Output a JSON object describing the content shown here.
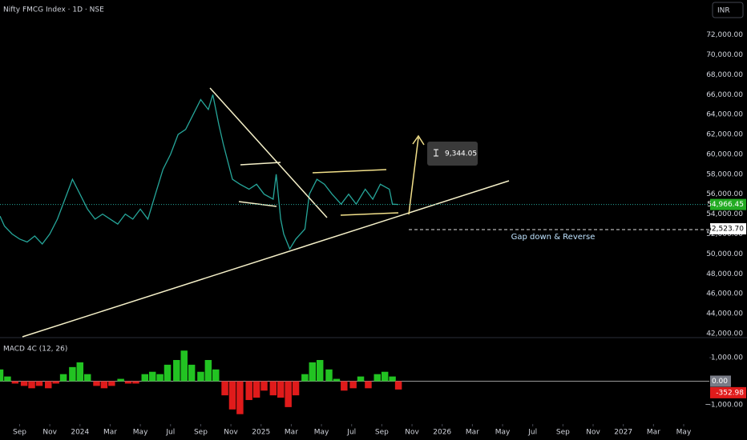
{
  "chart_data": [
    {
      "type": "line",
      "title": "Nifty FMCG Index · 1D · NSE",
      "currency": "INR",
      "x": [
        -5.3,
        -5,
        -4.5,
        -4,
        -3.5,
        -3,
        -2.5,
        -2,
        -1.5,
        -1,
        -0.5,
        0,
        0.5,
        1,
        1.5,
        2,
        2.5,
        3,
        3.5,
        4,
        4.5,
        5,
        5.5,
        6,
        6.5,
        7,
        7.5,
        8,
        8.5,
        8.8,
        9.2,
        9.5,
        10.1,
        10.6,
        11.2,
        11.7,
        12.2,
        12.8,
        13.0,
        13.3,
        13.5,
        13.9,
        14.3,
        14.9,
        15.2,
        15.7,
        16.2,
        16.7,
        17.3,
        17.8,
        18.3,
        18.9,
        19.4,
        19.9,
        20.5,
        20.7,
        21.1
      ],
      "series": [
        {
          "color": "#26a69a",
          "values": [
            53800,
            52800,
            52000,
            51500,
            51200,
            51800,
            51000,
            52000,
            53500,
            55500,
            57500,
            56000,
            54500,
            53500,
            54000,
            53500,
            53000,
            54000,
            53500,
            54500,
            53500,
            56000,
            58500,
            60000,
            62000,
            62500,
            64000,
            65500,
            64500,
            66000,
            63000,
            61000,
            57500,
            57000,
            56500,
            57000,
            56000,
            55500,
            58000,
            53500,
            52000,
            50500,
            51500,
            52500,
            56000,
            57500,
            57000,
            56000,
            55000,
            56000,
            55000,
            56500,
            55500,
            57000,
            56500,
            55000,
            54966.45
          ]
        }
      ],
      "last_price": {
        "value": 54966.45,
        "label": "54,966.45"
      },
      "level": {
        "value": 52523.7,
        "label": "52,523.70"
      },
      "measure_label": "9,344.05",
      "note": "Gap down & Reverse",
      "xlim": [
        -5.3,
        41.7
      ],
      "xticks": [
        {
          "value": -4,
          "label": "Sep"
        },
        {
          "value": -2,
          "label": "Nov"
        },
        {
          "value": 0,
          "label": "2024"
        },
        {
          "value": 2,
          "label": "Mar"
        },
        {
          "value": 4,
          "label": "May"
        },
        {
          "value": 6,
          "label": "Jul"
        },
        {
          "value": 8,
          "label": "Sep"
        },
        {
          "value": 10,
          "label": "Nov"
        },
        {
          "value": 12,
          "label": "2025"
        },
        {
          "value": 14,
          "label": "Mar"
        },
        {
          "value": 16,
          "label": "May"
        },
        {
          "value": 18,
          "label": "Jul"
        },
        {
          "value": 20,
          "label": "Sep"
        },
        {
          "value": 22,
          "label": "Nov"
        },
        {
          "value": 24,
          "label": "2026"
        },
        {
          "value": 26,
          "label": "Mar"
        },
        {
          "value": 28,
          "label": "May"
        },
        {
          "value": 30,
          "label": "Jul"
        },
        {
          "value": 32,
          "label": "Sep"
        },
        {
          "value": 34,
          "label": "Nov"
        },
        {
          "value": 36,
          "label": "2027"
        },
        {
          "value": 38,
          "label": "Mar"
        },
        {
          "value": 40,
          "label": "May"
        }
      ],
      "ylim": [
        41600,
        75500
      ],
      "yticks": [
        {
          "value": 42000,
          "label": "42,000.00"
        },
        {
          "value": 44000,
          "label": "44,000.00"
        },
        {
          "value": 46000,
          "label": "46,000.00"
        },
        {
          "value": 48000,
          "label": "48,000.00"
        },
        {
          "value": 50000,
          "label": "50,000.00"
        },
        {
          "value": 52000,
          "label": "52,000.00"
        },
        {
          "value": 54000,
          "label": "54,000.00"
        },
        {
          "value": 56000,
          "label": "56,000.00"
        },
        {
          "value": 58000,
          "label": "58,000.00"
        },
        {
          "value": 60000,
          "label": "60,000.00"
        },
        {
          "value": 62000,
          "label": "62,000.00"
        },
        {
          "value": 64000,
          "label": "64,000.00"
        },
        {
          "value": 66000,
          "label": "66,000.00"
        },
        {
          "value": 68000,
          "label": "68,000.00"
        },
        {
          "value": 70000,
          "label": "70,000.00"
        },
        {
          "value": 72000,
          "label": "72,000.00"
        }
      ]
    },
    {
      "type": "bar",
      "title": "MACD 4C (12, 26)",
      "x": [
        -5.3,
        -4.8,
        -4.3,
        -3.7,
        -3.2,
        -2.7,
        -2.1,
        -1.6,
        -1.1,
        -0.5,
        0,
        0.5,
        1.1,
        1.6,
        2.1,
        2.7,
        3.2,
        3.7,
        4.3,
        4.8,
        5.3,
        5.8,
        6.4,
        6.9,
        7.4,
        8.0,
        8.5,
        9.0,
        9.6,
        10.1,
        10.6,
        11.2,
        11.7,
        12.2,
        12.8,
        13.3,
        13.8,
        14.3,
        14.9,
        15.4,
        15.9,
        16.5,
        17.0,
        17.5,
        18.1,
        18.6,
        19.1,
        19.7,
        20.2,
        20.7,
        21.1
      ],
      "values": [
        500,
        200,
        -100,
        -200,
        -300,
        -200,
        -300,
        -100,
        300,
        600,
        800,
        300,
        -200,
        -300,
        -200,
        100,
        -100,
        -100,
        300,
        400,
        300,
        700,
        900,
        1300,
        700,
        400,
        900,
        500,
        -600,
        -1200,
        -1400,
        -800,
        -700,
        -400,
        -600,
        -700,
        -1100,
        -600,
        300,
        800,
        900,
        500,
        100,
        -400,
        -300,
        200,
        -300,
        300,
        400,
        200,
        -352.98
      ],
      "positive_color": "#22c322",
      "negative_color": "#e01b1b",
      "zero": {
        "value": 0,
        "label": "0.00"
      },
      "last": {
        "value": -352.98,
        "label": "-352.98"
      },
      "ylim": [
        -1750,
        1750
      ],
      "yticks": [
        {
          "value": 1000,
          "label": "1,000.00"
        },
        {
          "value": -1000,
          "label": "−1,000.00"
        }
      ]
    }
  ]
}
